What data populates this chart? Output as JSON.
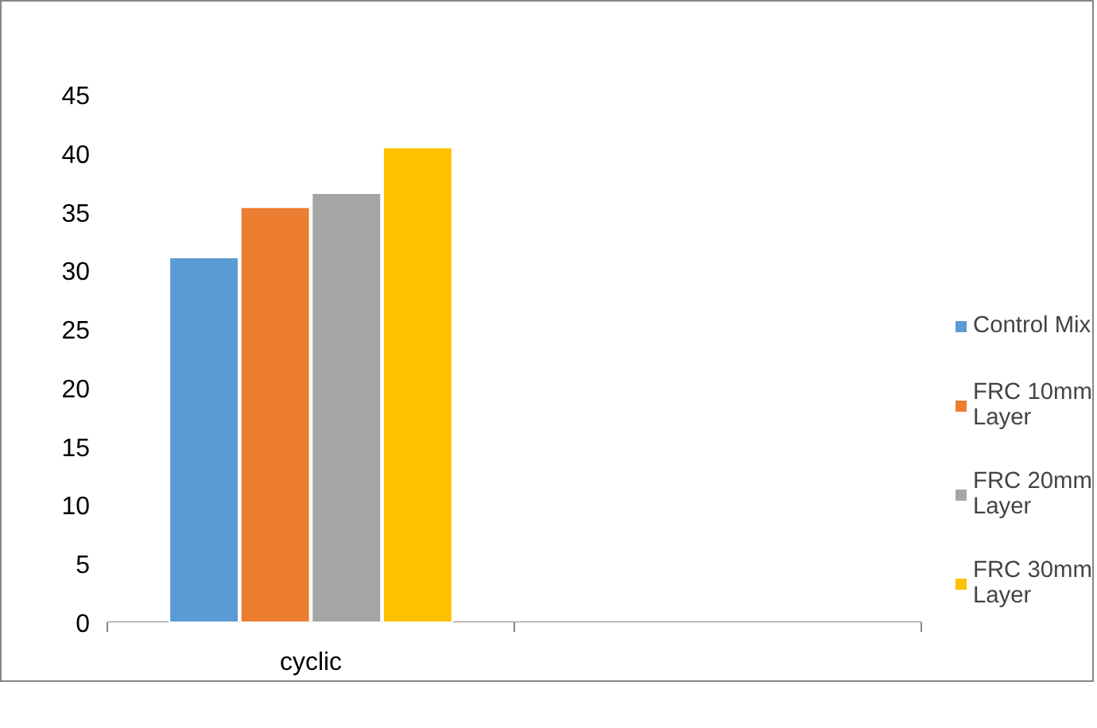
{
  "chart_data": {
    "type": "bar",
    "categories": [
      "cyclic",
      null
    ],
    "series": [
      {
        "name": "Control Mix",
        "color": "#5b9bd5",
        "values": [
          31.1,
          null
        ]
      },
      {
        "name": "FRC 10mm Layer",
        "color": "#ed7d31",
        "values": [
          35.4,
          null
        ]
      },
      {
        "name": "FRC 20mm Layer",
        "color": "#a5a5a5",
        "values": [
          36.6,
          null
        ]
      },
      {
        "name": "FRC 30mm Layer",
        "color": "#ffc000",
        "values": [
          40.5,
          null
        ]
      }
    ],
    "ylim": [
      0,
      45
    ],
    "yticks": [
      0,
      5,
      10,
      15,
      20,
      25,
      30,
      35,
      40,
      45
    ],
    "grid": false,
    "legend": "right"
  }
}
